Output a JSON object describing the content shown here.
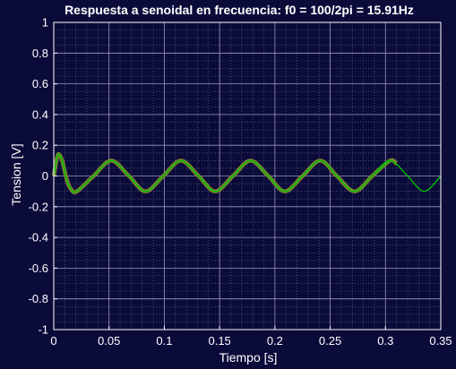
{
  "chart_data": {
    "type": "line",
    "title": "Respuesta a senoidal en frecuencia: f0 = 100/2pi = 15.91Hz",
    "xlabel": "Tiempo [s]",
    "ylabel": "Tension [V]",
    "xlim": [
      0,
      0.35
    ],
    "ylim": [
      -1,
      1
    ],
    "xticks": [
      0,
      0.05,
      0.1,
      0.15,
      0.2,
      0.25,
      0.3,
      0.35
    ],
    "xtick_labels": [
      "0",
      "0.05",
      "0.1",
      "0.15",
      "0.2",
      "0.25",
      "0.3",
      "0.35"
    ],
    "yticks": [
      -1,
      -0.8,
      -0.6,
      -0.4,
      -0.2,
      0,
      0.2,
      0.4,
      0.6,
      0.8,
      1
    ],
    "ytick_labels": [
      "-1",
      "-0.8",
      "-0.6",
      "-0.4",
      "-0.2",
      "0",
      "0.2",
      "0.4",
      "0.6",
      "0.8",
      "1"
    ],
    "grid": true,
    "minor_grid": true,
    "background_color": "#0b0b3a",
    "axes_color": "#ffffff",
    "series": [
      {
        "color": "#808033",
        "x": [
          0,
          0.003,
          0.005,
          0.008,
          0.012,
          0.016,
          0.021,
          0.036,
          0.052,
          0.068,
          0.083,
          0.099,
          0.115,
          0.131,
          0.146,
          0.162,
          0.178,
          0.194,
          0.209,
          0.225,
          0.241,
          0.256,
          0.272,
          0.288,
          0.304,
          0.31
        ],
        "y": [
          0,
          0.12,
          0.14,
          0.09,
          -0.03,
          -0.09,
          -0.1,
          0,
          0.1,
          0,
          -0.1,
          0,
          0.1,
          0,
          -0.1,
          0,
          0.1,
          0,
          -0.1,
          0,
          0.1,
          0,
          -0.1,
          0,
          0.1,
          0.08
        ]
      },
      {
        "color": "#00c000",
        "x": [
          0,
          0.003,
          0.005,
          0.008,
          0.012,
          0.016,
          0.021,
          0.036,
          0.052,
          0.068,
          0.083,
          0.099,
          0.115,
          0.131,
          0.146,
          0.162,
          0.178,
          0.194,
          0.209,
          0.225,
          0.241,
          0.256,
          0.272,
          0.288,
          0.304,
          0.32,
          0.335,
          0.35
        ],
        "y": [
          0,
          0.12,
          0.14,
          0.09,
          -0.03,
          -0.09,
          -0.1,
          0,
          0.1,
          0,
          -0.1,
          0,
          0.1,
          0,
          -0.1,
          0,
          0.1,
          0,
          -0.1,
          0,
          0.1,
          0,
          -0.1,
          0,
          0.1,
          0,
          -0.1,
          0
        ]
      }
    ]
  }
}
